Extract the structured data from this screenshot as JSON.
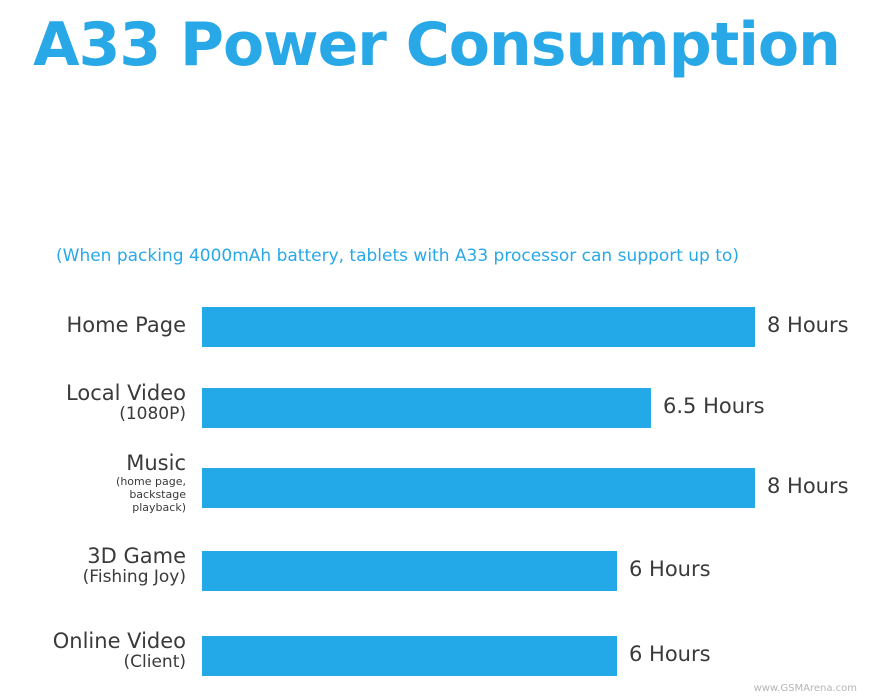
{
  "title": "A33 Power Consumption",
  "subtitle": "(When packing 4000mAh battery, tablets with A33 processor can support up to)",
  "watermark": "www.GSMArena.com",
  "colors": {
    "accent": "#29a8e8",
    "bar": "#23a9e7",
    "text": "#3a3a3a"
  },
  "chart_data": {
    "type": "bar",
    "orientation": "horizontal",
    "title": "A33 Power Consumption",
    "subtitle": "(When packing 4000mAh battery, tablets with A33 processor can support up to)",
    "categories": [
      {
        "main": "Home Page",
        "sub": []
      },
      {
        "main": "Local Video",
        "sub": [
          "(1080P)"
        ]
      },
      {
        "main": "Music",
        "sub_small": [
          "(home page,",
          "backstage",
          "playback)"
        ]
      },
      {
        "main": "3D Game",
        "sub": [
          "(Fishing Joy)"
        ]
      },
      {
        "main": "Online Video",
        "sub": [
          "(Client)"
        ]
      }
    ],
    "values": [
      8,
      6.5,
      8,
      6,
      6
    ],
    "value_labels": [
      "8 Hours",
      "6.5 Hours",
      "8 Hours",
      "6 Hours",
      "6 Hours"
    ],
    "unit": "Hours",
    "xlim": [
      0,
      8
    ],
    "grid": false,
    "legend": "none"
  }
}
